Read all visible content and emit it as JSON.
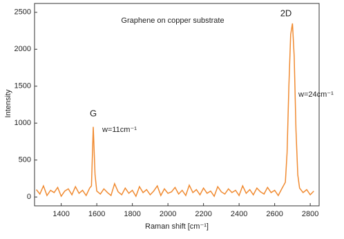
{
  "chart_data": {
    "type": "line",
    "title": "Graphene on copper substrate",
    "x_label": "Raman shift [cm⁻¹]",
    "y_label": "Intensity",
    "annotations": [
      "G",
      "w=11cm⁻¹",
      "2D",
      "w=24cm⁻¹"
    ],
    "xlim": [
      1250,
      2850
    ],
    "xticks": [
      1400,
      1600,
      1800,
      2000,
      2200,
      2400,
      2600,
      2800
    ],
    "ylim": [
      -120,
      2620
    ],
    "yticks": [
      0,
      500,
      1000,
      1500,
      2000,
      2500
    ],
    "series": [
      {
        "color": "#f08a30",
        "x": [
          1260,
          1280,
          1300,
          1320,
          1340,
          1360,
          1380,
          1400,
          1420,
          1440,
          1460,
          1480,
          1500,
          1520,
          1540,
          1560,
          1570,
          1580,
          1590,
          1600,
          1620,
          1640,
          1660,
          1680,
          1700,
          1720,
          1740,
          1760,
          1780,
          1800,
          1820,
          1840,
          1860,
          1880,
          1900,
          1920,
          1940,
          1960,
          1980,
          2000,
          2020,
          2040,
          2060,
          2080,
          2100,
          2120,
          2140,
          2160,
          2180,
          2200,
          2220,
          2240,
          2260,
          2280,
          2300,
          2320,
          2340,
          2360,
          2380,
          2400,
          2420,
          2440,
          2460,
          2480,
          2500,
          2520,
          2540,
          2560,
          2580,
          2600,
          2620,
          2640,
          2660,
          2670,
          2680,
          2690,
          2700,
          2710,
          2720,
          2730,
          2740,
          2760,
          2780,
          2800,
          2820
        ],
        "values": [
          100,
          40,
          150,
          20,
          90,
          60,
          130,
          10,
          80,
          110,
          30,
          140,
          50,
          90,
          20,
          120,
          150,
          950,
          300,
          80,
          40,
          110,
          60,
          20,
          180,
          70,
          30,
          120,
          50,
          90,
          10,
          140,
          60,
          100,
          30,
          80,
          150,
          20,
          110,
          50,
          70,
          130,
          40,
          90,
          20,
          160,
          60,
          100,
          30,
          120,
          50,
          80,
          10,
          140,
          70,
          40,
          110,
          60,
          90,
          20,
          150,
          50,
          100,
          30,
          120,
          70,
          40,
          130,
          60,
          90,
          20,
          110,
          200,
          600,
          1500,
          2200,
          2350,
          1900,
          900,
          300,
          120,
          60,
          100,
          30,
          80
        ]
      }
    ]
  }
}
